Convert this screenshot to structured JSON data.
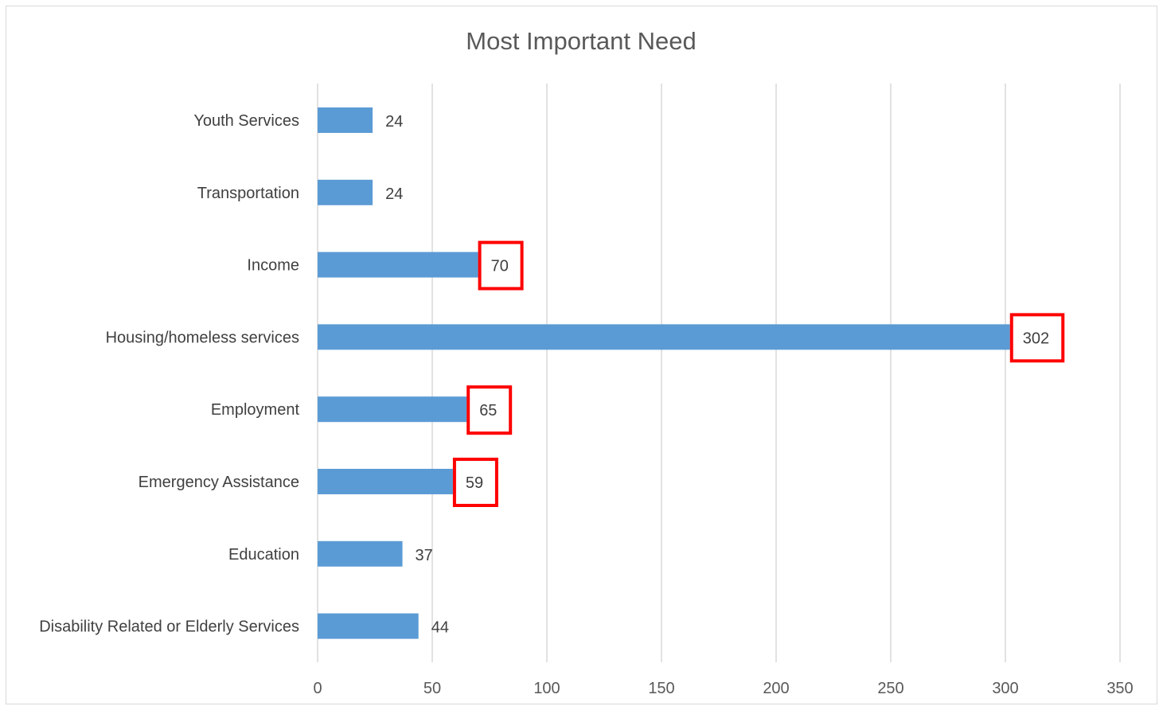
{
  "chart_data": {
    "type": "bar",
    "orientation": "horizontal",
    "title": "Most Important Need",
    "xlabel": "",
    "ylabel": "",
    "categories": [
      "Youth Services",
      "Transportation",
      "Income",
      "Housing/homeless services",
      "Employment",
      "Emergency Assistance",
      "Education",
      "Disability Related or Elderly Services"
    ],
    "values": [
      24,
      24,
      70,
      302,
      65,
      59,
      37,
      44
    ],
    "xlim": [
      0,
      350
    ],
    "xticks": [
      0,
      50,
      100,
      150,
      200,
      250,
      300,
      350
    ],
    "grid": "vertical",
    "legend": "none",
    "highlighted": [
      "Income",
      "Housing/homeless services",
      "Employment",
      "Emergency Assistance"
    ],
    "colors": {
      "bar": "#5b9bd5",
      "highlight_box": "#ff0000",
      "gridline": "#d9d9d9",
      "text": "#404040"
    }
  }
}
